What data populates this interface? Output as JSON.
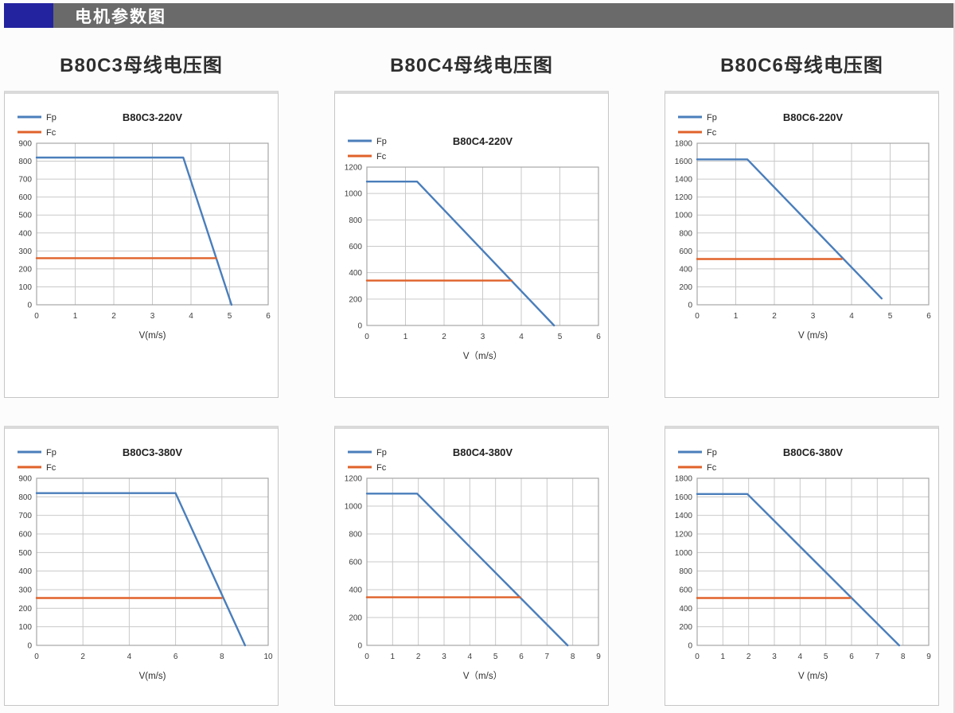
{
  "header": {
    "title": "电机参数图"
  },
  "section_headings": [
    {
      "label": "B80C3母线电压图"
    },
    {
      "label": "B80C4母线电压图"
    },
    {
      "label": "B80C6母线电压图"
    }
  ],
  "colors": {
    "fp_line": "#4a7ebb",
    "fc_line": "#e0622a",
    "header_bar": "#6a6a6a",
    "header_accent": "#2323a0",
    "grid_line": "#c9c9c9",
    "plot_border": "#a6a6a6",
    "tick_text": "#3d3d3d"
  },
  "chart_data": [
    {
      "type": "line",
      "title": "B80C3-220V",
      "xlabel": "V(m/s)",
      "legend": [
        "Fp",
        "Fc"
      ],
      "legend_position": "top-left",
      "grid": true,
      "x_min": 0,
      "x_max": 6,
      "x_step": 1,
      "y_min": 0,
      "y_max": 900,
      "y_step": 100,
      "series": [
        {
          "name": "Fp",
          "color": "#4a7ebb",
          "points": [
            [
              0,
              820
            ],
            [
              3.8,
              820
            ],
            [
              5.05,
              0
            ]
          ]
        },
        {
          "name": "Fc",
          "color": "#e0622a",
          "points": [
            [
              0,
              260
            ],
            [
              4.65,
              260
            ]
          ]
        }
      ]
    },
    {
      "type": "line",
      "title": "B80C4-220V",
      "xlabel": "V（m/s）",
      "legend": [
        "Fp",
        "Fc"
      ],
      "legend_position": "top-left",
      "grid": true,
      "x_min": 0,
      "x_max": 6,
      "x_step": 1,
      "y_min": 0,
      "y_max": 1200,
      "y_step": 200,
      "series": [
        {
          "name": "Fp",
          "color": "#4a7ebb",
          "points": [
            [
              0,
              1090
            ],
            [
              1.3,
              1090
            ],
            [
              4.85,
              0
            ]
          ]
        },
        {
          "name": "Fc",
          "color": "#e0622a",
          "points": [
            [
              0,
              340
            ],
            [
              3.75,
              340
            ]
          ]
        }
      ]
    },
    {
      "type": "line",
      "title": "B80C6-220V",
      "xlabel": "V (m/s)",
      "legend": [
        "Fp",
        "Fc"
      ],
      "legend_position": "top-left",
      "grid": true,
      "x_min": 0,
      "x_max": 6,
      "x_step": 1,
      "y_min": 0,
      "y_max": 1800,
      "y_step": 200,
      "series": [
        {
          "name": "Fp",
          "color": "#4a7ebb",
          "points": [
            [
              0,
              1620
            ],
            [
              1.3,
              1620
            ],
            [
              4.78,
              70
            ]
          ]
        },
        {
          "name": "Fc",
          "color": "#e0622a",
          "points": [
            [
              0,
              510
            ],
            [
              3.75,
              510
            ]
          ]
        }
      ]
    },
    {
      "type": "line",
      "title": "B80C3-380V",
      "xlabel": "V(m/s)",
      "legend": [
        "Fp",
        "Fc"
      ],
      "legend_position": "top-left",
      "grid": true,
      "x_min": 0,
      "x_max": 10,
      "x_step": 2,
      "y_min": 0,
      "y_max": 900,
      "y_step": 100,
      "series": [
        {
          "name": "Fp",
          "color": "#4a7ebb",
          "points": [
            [
              0,
              820
            ],
            [
              6,
              820
            ],
            [
              9,
              0
            ]
          ]
        },
        {
          "name": "Fc",
          "color": "#e0622a",
          "points": [
            [
              0,
              255
            ],
            [
              8,
              255
            ]
          ]
        }
      ]
    },
    {
      "type": "line",
      "title": "B80C4-380V",
      "xlabel": "V（m/s）",
      "legend": [
        "Fp",
        "Fc"
      ],
      "legend_position": "top-left",
      "grid": true,
      "x_min": 0,
      "x_max": 9,
      "x_step": 1,
      "y_min": 0,
      "y_max": 1200,
      "y_step": 200,
      "series": [
        {
          "name": "Fp",
          "color": "#4a7ebb",
          "points": [
            [
              0,
              1090
            ],
            [
              1.95,
              1090
            ],
            [
              7.8,
              0
            ]
          ]
        },
        {
          "name": "Fc",
          "color": "#e0622a",
          "points": [
            [
              0,
              345
            ],
            [
              5.95,
              345
            ]
          ]
        }
      ]
    },
    {
      "type": "line",
      "title": "B80C6-380V",
      "xlabel": "V (m/s)",
      "legend": [
        "Fp",
        "Fc"
      ],
      "legend_position": "top-left",
      "grid": true,
      "x_min": 0,
      "x_max": 9,
      "x_step": 1,
      "y_min": 0,
      "y_max": 1800,
      "y_step": 200,
      "series": [
        {
          "name": "Fp",
          "color": "#4a7ebb",
          "points": [
            [
              0,
              1630
            ],
            [
              1.95,
              1630
            ],
            [
              7.85,
              0
            ]
          ]
        },
        {
          "name": "Fc",
          "color": "#e0622a",
          "points": [
            [
              0,
              510
            ],
            [
              5.95,
              510
            ]
          ]
        }
      ]
    }
  ]
}
